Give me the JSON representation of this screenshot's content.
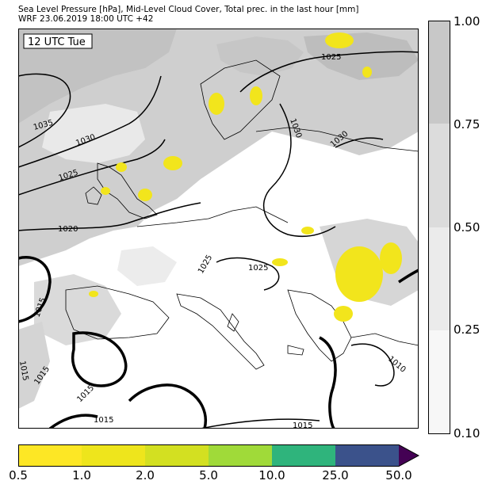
{
  "header": {
    "title_line1": "Sea Level Pressure [hPa], Mid-Level Cloud Cover, Total prec. in the last hour [mm]",
    "title_line2": "WRF 23.06.2019 18:00 UTC +42"
  },
  "map": {
    "time_label": "12 UTC Tue",
    "isobar_labels": [
      "1035",
      "1030",
      "1025",
      "1020",
      "1015",
      "1025",
      "1030",
      "1030",
      "1025",
      "1015",
      "1015",
      "1015",
      "1010",
      "1015",
      "1025",
      "1015"
    ]
  },
  "cloud_colorbar": {
    "ticks": [
      "1.00",
      "0.75",
      "0.50",
      "0.25",
      "0.10"
    ],
    "colors": [
      "#c8c8c8",
      "#dcdcdc",
      "#ebebeb",
      "#f7f7f7"
    ]
  },
  "precip_colorbar": {
    "ticks": [
      "0.5",
      "1.0",
      "2.0",
      "5.0",
      "10.0",
      "25.0",
      "50.0"
    ],
    "colors": [
      "#fde725",
      "#eee51c",
      "#d3e021",
      "#a0da39",
      "#2fb47c",
      "#3b528b",
      "#440154"
    ]
  }
}
